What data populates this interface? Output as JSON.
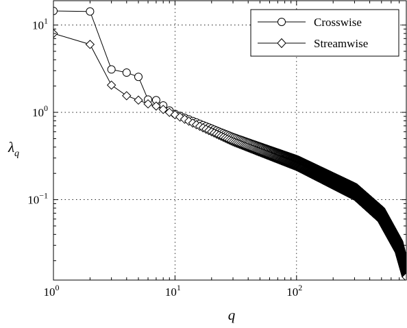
{
  "chart_data": {
    "type": "line",
    "xlabel": "q",
    "ylabel": "λq",
    "xscale": "log",
    "yscale": "log",
    "xlim": [
      1,
      800
    ],
    "ylim": [
      0.012,
      19
    ],
    "grid": true,
    "legend_position": "top-right",
    "x_ticks": [
      {
        "value": 1,
        "label": "10",
        "exp": "0"
      },
      {
        "value": 10,
        "label": "10",
        "exp": "1"
      },
      {
        "value": 100,
        "label": "10",
        "exp": "2"
      }
    ],
    "y_ticks": [
      {
        "value": 10,
        "label": "10",
        "exp": "1"
      },
      {
        "value": 1,
        "label": "10",
        "exp": "0"
      },
      {
        "value": 0.1,
        "label": "10",
        "exp": "−1"
      }
    ],
    "series": [
      {
        "name": "Crosswise",
        "marker": "circle",
        "head": [
          [
            1,
            14.5
          ],
          [
            2,
            14.3
          ],
          [
            3,
            3.1
          ],
          [
            4,
            2.85
          ],
          [
            5,
            2.55
          ],
          [
            6,
            1.4
          ],
          [
            7,
            1.38
          ],
          [
            8,
            1.2
          ],
          [
            9,
            1.05
          ],
          [
            10,
            0.96
          ]
        ],
        "tail": [
          [
            10,
            0.96
          ],
          [
            30,
            0.52
          ],
          [
            100,
            0.29
          ],
          [
            300,
            0.14
          ],
          [
            500,
            0.075
          ],
          [
            700,
            0.032
          ],
          [
            800,
            0.015
          ]
        ]
      },
      {
        "name": "Streamwise",
        "marker": "diamond",
        "head": [
          [
            1,
            8.0
          ],
          [
            2,
            6.0
          ],
          [
            3,
            2.05
          ],
          [
            4,
            1.55
          ],
          [
            5,
            1.38
          ],
          [
            6,
            1.25
          ],
          [
            7,
            1.18
          ],
          [
            8,
            1.08
          ],
          [
            9,
            1.0
          ],
          [
            10,
            0.94
          ]
        ],
        "tail": [
          [
            10,
            0.94
          ],
          [
            30,
            0.46
          ],
          [
            100,
            0.24
          ],
          [
            300,
            0.11
          ],
          [
            500,
            0.058
          ],
          [
            700,
            0.025
          ],
          [
            800,
            0.013
          ]
        ]
      }
    ]
  }
}
